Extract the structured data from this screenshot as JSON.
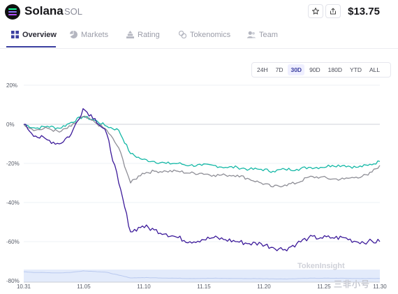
{
  "header": {
    "name": "Solana",
    "symbol": "SOL",
    "price": "$13.75",
    "colors": {
      "logo_top": "#19fb9b",
      "logo_mid": "#8c6cf6",
      "logo_bottom": "#b34dff"
    }
  },
  "tabs": [
    {
      "label": "Overview",
      "icon": "grid-icon",
      "active": true
    },
    {
      "label": "Markets",
      "icon": "pie-chart-icon",
      "active": false
    },
    {
      "label": "Rating",
      "icon": "stack-icon",
      "active": false
    },
    {
      "label": "Tokenomics",
      "icon": "coins-icon",
      "active": false
    },
    {
      "label": "Team",
      "icon": "users-icon",
      "active": false
    }
  ],
  "ranges": [
    {
      "label": "24H",
      "active": false
    },
    {
      "label": "7D",
      "active": false
    },
    {
      "label": "30D",
      "active": true
    },
    {
      "label": "90D",
      "active": false
    },
    {
      "label": "180D",
      "active": false
    },
    {
      "label": "YTD",
      "active": false
    },
    {
      "label": "ALL",
      "active": false
    }
  ],
  "watermarks": {
    "top": "TokenInsight",
    "bottom": "三非小号"
  },
  "chart_data": {
    "type": "line",
    "x_ticks": [
      "10.31",
      "11.05",
      "11.10",
      "11.15",
      "11.20",
      "11.25",
      "11.30"
    ],
    "y_ticks": [
      "20%",
      "0%",
      "-20%",
      "-40%",
      "-60%",
      "-80%"
    ],
    "ylim": [
      -80,
      20
    ],
    "xlim": [
      0,
      30
    ],
    "grid": "horizontal",
    "colors": {
      "series_teal": "#14b8a6",
      "series_gray": "#8e8e96",
      "series_purple": "#3c1a9a"
    },
    "series": [
      {
        "color": "#14b8a6",
        "x": [
          0,
          1,
          2,
          3,
          4,
          5,
          6,
          7,
          8,
          9,
          10,
          11,
          12,
          13,
          14,
          15,
          16,
          17,
          18,
          19,
          20,
          21,
          22,
          23,
          24,
          25,
          26,
          27,
          28,
          29,
          30
        ],
        "values": [
          0,
          -2,
          -1,
          -2,
          1,
          4,
          2,
          -1,
          -3,
          -15,
          -18,
          -19,
          -20,
          -20,
          -21,
          -21,
          -21,
          -22,
          -22,
          -23,
          -23,
          -24,
          -23,
          -23,
          -22,
          -22,
          -21,
          -21,
          -22,
          -21,
          -19
        ]
      },
      {
        "color": "#8e8e96",
        "x": [
          0,
          1,
          2,
          3,
          4,
          5,
          6,
          7,
          8,
          9,
          10,
          11,
          12,
          13,
          14,
          15,
          16,
          17,
          18,
          19,
          20,
          21,
          22,
          23,
          24,
          25,
          26,
          27,
          28,
          29,
          30
        ],
        "values": [
          0,
          -3,
          -2,
          -4,
          -1,
          4,
          1,
          -3,
          -12,
          -30,
          -25,
          -24,
          -24,
          -24,
          -25,
          -25,
          -26,
          -26,
          -26,
          -28,
          -30,
          -32,
          -31,
          -30,
          -27,
          -27,
          -28,
          -28,
          -27,
          -26,
          -21
        ]
      },
      {
        "color": "#3c1a9a",
        "x": [
          0,
          1,
          2,
          3,
          4,
          5,
          6,
          7,
          8,
          9,
          10,
          11,
          12,
          13,
          14,
          15,
          16,
          17,
          18,
          19,
          20,
          21,
          22,
          23,
          24,
          25,
          26,
          27,
          28,
          29,
          30
        ],
        "values": [
          0,
          -6,
          -8,
          -10,
          -5,
          8,
          3,
          -5,
          -30,
          -55,
          -52,
          -54,
          -56,
          -58,
          -60,
          -59,
          -58,
          -59,
          -60,
          -61,
          -61,
          -63,
          -64,
          -61,
          -58,
          -58,
          -58,
          -58,
          -60,
          -60,
          -60
        ]
      }
    ]
  }
}
